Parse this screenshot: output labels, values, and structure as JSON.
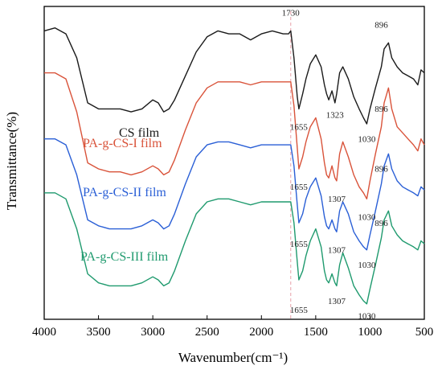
{
  "chart_data": {
    "type": "line",
    "title": "",
    "xlabel": "Wavenumber(cm⁻¹)",
    "ylabel": "Transmittance(%)",
    "xlim": [
      4000,
      500
    ],
    "x_reversed": true,
    "x_ticks": [
      4000,
      3500,
      3000,
      2500,
      2000,
      1500,
      1000,
      500
    ],
    "y_ticks_shown": false,
    "grid": false,
    "legend": "labels beside each curve",
    "reference_line": {
      "x": 1730,
      "color": "#e8a0a8",
      "style": "dashed"
    },
    "x": [
      4000,
      3900,
      3800,
      3700,
      3600,
      3500,
      3400,
      3300,
      3200,
      3100,
      3000,
      2950,
      2900,
      2850,
      2800,
      2700,
      2600,
      2500,
      2400,
      2300,
      2200,
      2100,
      2000,
      1900,
      1800,
      1750,
      1730,
      1700,
      1670,
      1655,
      1620,
      1590,
      1550,
      1500,
      1450,
      1420,
      1400,
      1380,
      1350,
      1323,
      1307,
      1280,
      1250,
      1200,
      1150,
      1100,
      1060,
      1030,
      1000,
      950,
      896,
      870,
      830,
      800,
      750,
      700,
      650,
      600,
      560,
      530,
      500
    ],
    "series": [
      {
        "name": "CS film",
        "color": "#1a1a1a",
        "values": [
          94,
          95,
          93,
          85,
          70,
          68,
          68,
          68,
          67,
          68,
          71,
          70,
          67,
          68,
          71,
          79,
          87,
          92,
          94,
          93,
          93,
          91,
          93,
          94,
          93,
          93,
          94,
          85,
          72,
          68,
          73,
          78,
          83,
          86,
          82,
          76,
          73,
          71,
          74,
          70,
          73,
          80,
          82,
          78,
          72,
          68,
          65,
          63,
          68,
          75,
          82,
          88,
          90,
          85,
          82,
          80,
          79,
          78,
          76,
          81,
          80
        ]
      },
      {
        "name": "PA-g-CS-I film",
        "color": "#d9533a",
        "values": [
          80,
          80,
          78,
          67,
          50,
          48,
          47,
          47,
          46,
          47,
          49,
          48,
          46,
          47,
          51,
          61,
          70,
          75,
          77,
          77,
          77,
          76,
          77,
          77,
          77,
          77,
          77,
          69,
          55,
          48,
          52,
          57,
          62,
          65,
          58,
          50,
          46,
          45,
          49,
          45,
          44,
          53,
          57,
          52,
          46,
          42,
          40,
          38,
          44,
          53,
          62,
          70,
          75,
          68,
          62,
          60,
          58,
          56,
          54,
          58,
          56
        ]
      },
      {
        "name": "PA-g-CS-II film",
        "color": "#2a5fd6",
        "values": [
          58,
          58,
          56,
          46,
          31,
          29,
          28,
          28,
          28,
          29,
          31,
          30,
          28,
          29,
          33,
          43,
          52,
          56,
          57,
          57,
          56,
          55,
          56,
          56,
          56,
          56,
          56,
          49,
          36,
          30,
          33,
          38,
          42,
          45,
          39,
          32,
          29,
          28,
          31,
          28,
          27,
          34,
          37,
          33,
          27,
          24,
          22,
          21,
          26,
          34,
          43,
          49,
          53,
          48,
          44,
          42,
          41,
          40,
          39,
          42,
          41
        ]
      },
      {
        "name": "PA-g-CS-III film",
        "color": "#1f9a6e",
        "values": [
          40,
          40,
          38,
          28,
          13,
          10,
          9,
          9,
          9,
          10,
          12,
          11,
          9,
          10,
          14,
          24,
          33,
          37,
          38,
          38,
          37,
          36,
          37,
          37,
          37,
          37,
          37,
          30,
          17,
          11,
          14,
          19,
          24,
          28,
          22,
          14,
          11,
          10,
          13,
          10,
          9,
          16,
          20,
          15,
          9,
          6,
          4,
          3,
          8,
          16,
          25,
          31,
          34,
          29,
          26,
          24,
          23,
          22,
          21,
          24,
          23
        ]
      }
    ],
    "annotations": [
      {
        "text": "1730",
        "x": 1730,
        "y": 99
      },
      {
        "text": "1655",
        "x": 1655,
        "y": 61
      },
      {
        "text": "1323",
        "x": 1323,
        "y": 65
      },
      {
        "text": "1030",
        "x": 1030,
        "y": 57
      },
      {
        "text": "896",
        "x": 896,
        "y": 95
      },
      {
        "text": "896",
        "x": 896,
        "y": 67
      },
      {
        "text": "1307",
        "x": 1307,
        "y": 37
      },
      {
        "text": "1655",
        "x": 1655,
        "y": 41
      },
      {
        "text": "1030",
        "x": 1030,
        "y": 31
      },
      {
        "text": "896",
        "x": 896,
        "y": 47
      },
      {
        "text": "1307",
        "x": 1307,
        "y": 20
      },
      {
        "text": "1655",
        "x": 1655,
        "y": 22
      },
      {
        "text": "1030",
        "x": 1030,
        "y": 15
      },
      {
        "text": "896",
        "x": 896,
        "y": 29
      },
      {
        "text": "1307",
        "x": 1307,
        "y": 3
      },
      {
        "text": "1655",
        "x": 1655,
        "y": 0
      },
      {
        "text": "1030",
        "x": 1030,
        "y": -2
      }
    ]
  }
}
